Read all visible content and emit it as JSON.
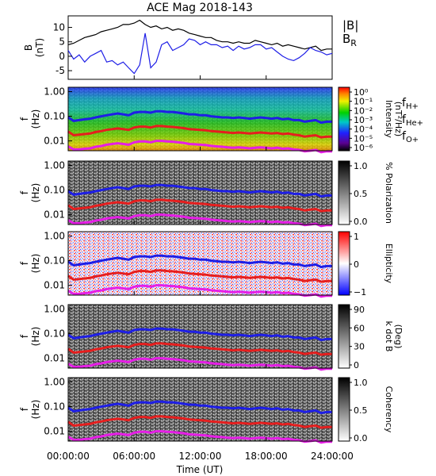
{
  "title": "ACE Mag 2018-143",
  "time_axis": {
    "label": "Time (UT)",
    "ticks": [
      "00:00:00",
      "06:00:00",
      "12:00:00",
      "18:00:00",
      "24:00:00"
    ],
    "tick_hours": [
      0,
      6,
      12,
      18,
      24
    ],
    "range_hours": [
      0,
      24
    ]
  },
  "freq_axis": {
    "ticks": [
      "1.00",
      "0.10",
      "0.01"
    ],
    "tick_values": [
      1.0,
      0.1,
      0.01
    ],
    "range": [
      0.004,
      1.5
    ],
    "log": true
  },
  "legend_labels": {
    "fH": "f",
    "fH_sub": "H+",
    "fHe": "f",
    "fHe_sub": "He+",
    "fO": "f",
    "fO_sub": "O+"
  },
  "colors": {
    "btot": "#000000",
    "br": "#1e1ee6",
    "fH": "#1e1ee6",
    "fHe": "#e61e1e",
    "fO": "#e61ee6"
  },
  "chart_data": {
    "type": "line",
    "title": "ACE Mag 2018-143",
    "xlabel": "Time (UT)",
    "panels": [
      {
        "name": "field",
        "ylabel": "B",
        "yunit": "(nT)",
        "ylim": [
          -8,
          14
        ],
        "yticks": [
          "10",
          "5",
          "0",
          "-5"
        ],
        "ytick_values": [
          10,
          5,
          0,
          -5
        ],
        "legend": [
          "|B|",
          "B",
          "R"
        ],
        "series": [
          {
            "name": "|B|",
            "color": "#000000",
            "x": [
              0,
              0.5,
              1,
              1.5,
              2,
              2.5,
              3,
              3.5,
              4,
              4.5,
              5,
              5.5,
              6,
              6.5,
              7,
              7.5,
              8,
              8.5,
              9,
              9.5,
              10,
              10.5,
              11,
              11.5,
              12,
              12.5,
              13,
              13.5,
              14,
              14.5,
              15,
              15.5,
              16,
              16.5,
              17,
              17.5,
              18,
              18.5,
              19,
              19.5,
              20,
              20.5,
              21,
              21.5,
              22,
              22.5,
              23,
              23.5,
              24
            ],
            "y": [
              4,
              4.5,
              5.5,
              6.5,
              7,
              7.5,
              8.5,
              9,
              9.5,
              10,
              11,
              11,
              11.5,
              12.5,
              11,
              10,
              10.5,
              9.5,
              10,
              9,
              9.5,
              9,
              8,
              7.5,
              7,
              6.5,
              6.5,
              5.5,
              5,
              5,
              4.5,
              5,
              4.5,
              4.5,
              5.5,
              5,
              4.5,
              4,
              4.5,
              3.5,
              4,
              3.5,
              3,
              2.5,
              3,
              3.5,
              2,
              2.5,
              2.5
            ]
          },
          {
            "name": "B",
            "color": "#1e1ee6",
            "x": [
              0,
              0.5,
              1,
              1.5,
              2,
              2.5,
              3,
              3.5,
              4,
              4.5,
              5,
              5.5,
              6,
              6.5,
              7,
              7.5,
              8,
              8.5,
              9,
              9.5,
              10,
              10.5,
              11,
              11.5,
              12,
              12.5,
              13,
              13.5,
              14,
              14.5,
              15,
              15.5,
              16,
              16.5,
              17,
              17.5,
              18,
              18.5,
              19,
              19.5,
              20,
              20.5,
              21,
              21.5,
              22,
              22.5,
              23,
              23.5,
              24
            ],
            "y": [
              2,
              -1,
              0.5,
              -2,
              0,
              1,
              2,
              -2,
              -1.5,
              -3,
              -2,
              -4,
              -6,
              -3,
              8,
              -4,
              -2,
              4,
              5,
              2,
              3,
              4,
              6,
              5.5,
              4,
              5,
              4,
              4,
              3,
              3.5,
              2,
              3.5,
              2.5,
              3,
              4,
              4,
              2.5,
              3,
              1.5,
              0,
              -1,
              -1.5,
              -0.5,
              1,
              3,
              2,
              1.5,
              0.5,
              1
            ]
          }
        ]
      },
      {
        "name": "intensity",
        "ylabel": "f",
        "yunit": "(Hz)",
        "colorbar": {
          "label": "Intensity",
          "unit": "(nT²/Hz)",
          "ticks": [
            "10⁰",
            "10⁻¹",
            "10⁻²",
            "10⁻³",
            "10⁻⁴",
            "10⁻⁵",
            "10⁻⁶"
          ]
        }
      },
      {
        "name": "polarization",
        "ylabel": "f",
        "yunit": "(Hz)",
        "colorbar": {
          "label": "% Polarization",
          "ticks": [
            "1.0",
            "0.5",
            "0.0"
          ]
        }
      },
      {
        "name": "ellipticity",
        "ylabel": "f",
        "yunit": "(Hz)",
        "colorbar": {
          "label": "Ellipticity",
          "ticks": [
            "1",
            "0",
            "−1"
          ]
        }
      },
      {
        "name": "kdotb",
        "ylabel": "f",
        "yunit": "(Hz)",
        "colorbar": {
          "label": "k dot B",
          "unit": "(Deg)",
          "ticks": [
            "90",
            "60",
            "30",
            "0"
          ]
        }
      },
      {
        "name": "coherency",
        "ylabel": "f",
        "yunit": "(Hz)",
        "colorbar": {
          "label": "Coherency",
          "ticks": [
            "1.0",
            "0.5",
            "0.0"
          ]
        }
      }
    ],
    "gyrofrequencies": {
      "x": [
        0,
        0.5,
        1,
        1.5,
        2,
        2.5,
        3,
        3.5,
        4,
        4.5,
        5,
        5.5,
        6,
        6.5,
        7,
        7.5,
        8,
        8.5,
        9,
        9.5,
        10,
        10.5,
        11,
        11.5,
        12,
        12.5,
        13,
        13.5,
        14,
        14.5,
        15,
        15.5,
        16,
        16.5,
        17,
        17.5,
        18,
        18.5,
        19,
        19.5,
        20,
        20.5,
        21,
        21.5,
        22,
        22.5,
        23,
        23.5,
        24
      ],
      "fH": [
        0.09,
        0.065,
        0.07,
        0.075,
        0.08,
        0.09,
        0.1,
        0.11,
        0.12,
        0.13,
        0.12,
        0.11,
        0.14,
        0.15,
        0.15,
        0.14,
        0.16,
        0.16,
        0.15,
        0.15,
        0.14,
        0.13,
        0.12,
        0.12,
        0.11,
        0.11,
        0.1,
        0.095,
        0.09,
        0.09,
        0.085,
        0.09,
        0.085,
        0.08,
        0.085,
        0.09,
        0.085,
        0.08,
        0.085,
        0.075,
        0.08,
        0.07,
        0.07,
        0.06,
        0.065,
        0.07,
        0.055,
        0.06,
        0.06
      ],
      "fHe": [
        0.024,
        0.017,
        0.018,
        0.019,
        0.02,
        0.023,
        0.025,
        0.028,
        0.03,
        0.032,
        0.03,
        0.028,
        0.035,
        0.038,
        0.038,
        0.035,
        0.04,
        0.04,
        0.038,
        0.037,
        0.035,
        0.033,
        0.03,
        0.029,
        0.028,
        0.027,
        0.025,
        0.024,
        0.023,
        0.022,
        0.021,
        0.022,
        0.021,
        0.02,
        0.021,
        0.022,
        0.021,
        0.02,
        0.021,
        0.019,
        0.02,
        0.018,
        0.017,
        0.015,
        0.016,
        0.017,
        0.014,
        0.015,
        0.015
      ],
      "fO": [
        0.006,
        0.0045,
        0.0045,
        0.0048,
        0.005,
        0.0058,
        0.0062,
        0.007,
        0.0075,
        0.008,
        0.0075,
        0.007,
        0.0088,
        0.0095,
        0.0095,
        0.0088,
        0.01,
        0.01,
        0.0095,
        0.0093,
        0.0088,
        0.0083,
        0.0075,
        0.0073,
        0.007,
        0.0068,
        0.0063,
        0.006,
        0.0058,
        0.0055,
        0.0053,
        0.0055,
        0.0053,
        0.005,
        0.0053,
        0.0055,
        0.0053,
        0.005,
        0.0053,
        0.0048,
        0.005,
        0.0045,
        0.0043,
        0.0038,
        0.004,
        0.0043,
        0.0035,
        0.0038,
        0.0038
      ]
    }
  }
}
